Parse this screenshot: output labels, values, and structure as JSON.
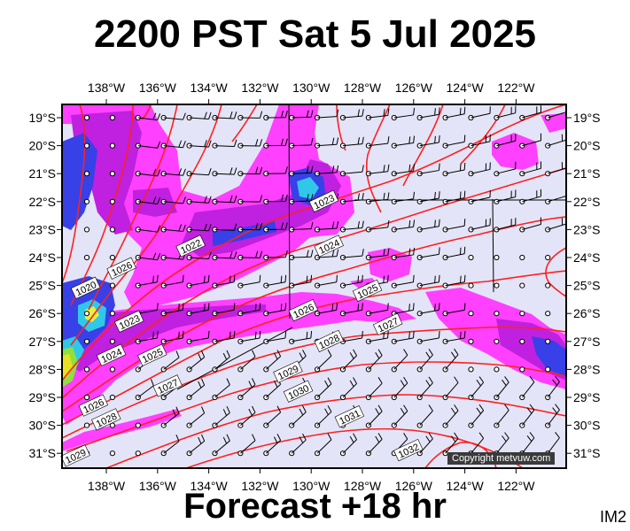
{
  "title": "2200 PST Sat 5 Jul 2025",
  "footer": "Forecast +18 hr",
  "image_tag": "IM2",
  "copyright": "Copyright metvuw.com",
  "colors": {
    "ocean": "#e4e4f8",
    "precip_light": "#ff40ff",
    "precip_medium": "#c020e0",
    "precip_heavy": "#3840e8",
    "precip_strong": "#30c8e8",
    "precip_extreme": "#e8e020",
    "isobar": "#ff2020",
    "wind": "#000000"
  },
  "map": {
    "longitude_labels": [
      "138°W",
      "136°W",
      "134°W",
      "132°W",
      "130°W",
      "128°W",
      "126°W",
      "124°W",
      "122°W"
    ],
    "latitude_labels": [
      "19°S",
      "20°S",
      "21°S",
      "22°S",
      "23°S",
      "24°S",
      "25°S",
      "26°S",
      "27°S",
      "28°S",
      "29°S",
      "30°S",
      "31°S"
    ],
    "isobar_labels": [
      {
        "text": "1020",
        "lon": -138.8,
        "lat": -25.1
      },
      {
        "text": "1022",
        "lon": -134.7,
        "lat": -23.6
      },
      {
        "text": "1023",
        "lon": -129.5,
        "lat": -22.0
      },
      {
        "text": "1023",
        "lon": -137.1,
        "lat": -26.3
      },
      {
        "text": "1024",
        "lon": -129.3,
        "lat": -23.6
      },
      {
        "text": "1024",
        "lon": -137.8,
        "lat": -27.5
      },
      {
        "text": "1025",
        "lon": -127.8,
        "lat": -25.2
      },
      {
        "text": "1025",
        "lon": -136.2,
        "lat": -27.5
      },
      {
        "text": "1026",
        "lon": -137.4,
        "lat": -24.4
      },
      {
        "text": "1026",
        "lon": -130.3,
        "lat": -25.9
      },
      {
        "text": "1026",
        "lon": -138.5,
        "lat": -29.3
      },
      {
        "text": "1027",
        "lon": -127.0,
        "lat": -26.4
      },
      {
        "text": "1027",
        "lon": -135.6,
        "lat": -28.6
      },
      {
        "text": "1028",
        "lon": -129.3,
        "lat": -27.0
      },
      {
        "text": "1028",
        "lon": -138.0,
        "lat": -29.8
      },
      {
        "text": "1029",
        "lon": -130.9,
        "lat": -28.1
      },
      {
        "text": "1029",
        "lon": -139.2,
        "lat": -31.1
      },
      {
        "text": "1030",
        "lon": -130.5,
        "lat": -28.8
      },
      {
        "text": "1031",
        "lon": -128.5,
        "lat": -29.7
      },
      {
        "text": "1032",
        "lon": -126.2,
        "lat": -30.9
      }
    ]
  }
}
